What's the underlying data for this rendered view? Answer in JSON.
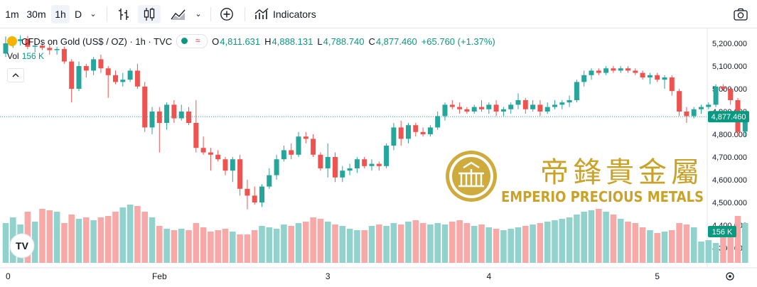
{
  "toolbar": {
    "intervals": [
      "1m",
      "30m",
      "1h",
      "D"
    ],
    "active_interval": "1h",
    "indicators_label": "Indicators"
  },
  "legend": {
    "symbol": "CFDs on Gold (US$ / OZ) · 1h · TVC",
    "o_label": "O",
    "o_value": "4,811.631",
    "h_label": "H",
    "h_value": "4,888.131",
    "l_label": "L",
    "l_value": "4,788.740",
    "c_label": "C",
    "c_value": "4,877.460",
    "change": "+65.760 (+1.37%)",
    "vol_label": "Vol",
    "vol_value": "156 K"
  },
  "watermark": {
    "cn": "帝鋒貴金屬",
    "en": "EMPERIO PRECIOUS METALS"
  },
  "colors": {
    "up": "#26a69a",
    "down": "#ef5350",
    "vol_up": "#92d2cc",
    "vol_down": "#f7a9a7",
    "accent": "#089981",
    "gold": "#c9a227"
  },
  "chart_data": {
    "type": "candlestick",
    "title": "CFDs on Gold (US$ / OZ) · 1h · TVC",
    "ylim": [
      4250,
      5250
    ],
    "y_ticks": [
      5200,
      5100,
      5000,
      4900,
      4800,
      4700,
      4600,
      4500,
      4400,
      4300
    ],
    "y_tick_labels": [
      "5,200.000",
      "5,100.000",
      "5,000.000",
      "4,900.000",
      "4,800.000",
      "4,700.000",
      "4,600.000",
      "4,500.000",
      "4,400.000",
      "4,300.000"
    ],
    "x_labels": [
      {
        "label": "0",
        "index": 0
      },
      {
        "label": "Feb",
        "index": 21
      },
      {
        "label": "3",
        "index": 44
      },
      {
        "label": "4",
        "index": 66
      },
      {
        "label": "5",
        "index": 89
      }
    ],
    "last_price": 4877.46,
    "last_price_label": "4,877.460",
    "last_volume_label": "156 K",
    "candles": [
      [
        5155,
        5230,
        5140,
        5200
      ],
      [
        5200,
        5230,
        5180,
        5210
      ],
      [
        5210,
        5235,
        5190,
        5218
      ],
      [
        5218,
        5232,
        5175,
        5185
      ],
      [
        5185,
        5205,
        5160,
        5190
      ],
      [
        5190,
        5205,
        5170,
        5180
      ],
      [
        5180,
        5195,
        5150,
        5170
      ],
      [
        5170,
        5185,
        5150,
        5175
      ],
      [
        5175,
        5185,
        5110,
        5120
      ],
      [
        5120,
        5130,
        4940,
        5000
      ],
      [
        5000,
        5120,
        4990,
        5100
      ],
      [
        5100,
        5110,
        5050,
        5080
      ],
      [
        5080,
        5140,
        5060,
        5130
      ],
      [
        5130,
        5150,
        5070,
        5090
      ],
      [
        5090,
        5100,
        4960,
        5060
      ],
      [
        5060,
        5080,
        5020,
        5030
      ],
      [
        5030,
        5070,
        5010,
        5040
      ],
      [
        5040,
        5090,
        5030,
        5080
      ],
      [
        5080,
        5110,
        5000,
        5010
      ],
      [
        5010,
        5030,
        4810,
        4830
      ],
      [
        4830,
        4920,
        4800,
        4900
      ],
      [
        4900,
        4920,
        4720,
        4850
      ],
      [
        4850,
        4940,
        4820,
        4930
      ],
      [
        4930,
        4950,
        4850,
        4870
      ],
      [
        4870,
        4930,
        4860,
        4900
      ],
      [
        4900,
        4920,
        4840,
        4850
      ],
      [
        4850,
        4950,
        4720,
        4740
      ],
      [
        4740,
        4790,
        4710,
        4720
      ],
      [
        4720,
        4740,
        4640,
        4710
      ],
      [
        4710,
        4730,
        4680,
        4690
      ],
      [
        4690,
        4700,
        4620,
        4640
      ],
      [
        4640,
        4700,
        4590,
        4690
      ],
      [
        4690,
        4710,
        4530,
        4560
      ],
      [
        4560,
        4600,
        4470,
        4530
      ],
      [
        4530,
        4570,
        4490,
        4500
      ],
      [
        4500,
        4580,
        4480,
        4570
      ],
      [
        4570,
        4650,
        4560,
        4620
      ],
      [
        4620,
        4710,
        4600,
        4690
      ],
      [
        4690,
        4750,
        4680,
        4730
      ],
      [
        4730,
        4760,
        4690,
        4710
      ],
      [
        4710,
        4810,
        4700,
        4790
      ],
      [
        4790,
        4810,
        4760,
        4780
      ],
      [
        4780,
        4800,
        4700,
        4710
      ],
      [
        4710,
        4720,
        4640,
        4650
      ],
      [
        4650,
        4760,
        4610,
        4700
      ],
      [
        4700,
        4720,
        4590,
        4610
      ],
      [
        4610,
        4660,
        4590,
        4640
      ],
      [
        4640,
        4670,
        4620,
        4650
      ],
      [
        4650,
        4700,
        4630,
        4690
      ],
      [
        4690,
        4700,
        4650,
        4660
      ],
      [
        4660,
        4690,
        4640,
        4670
      ],
      [
        4670,
        4680,
        4640,
        4660
      ],
      [
        4660,
        4760,
        4650,
        4750
      ],
      [
        4750,
        4850,
        4730,
        4830
      ],
      [
        4830,
        4860,
        4750,
        4780
      ],
      [
        4780,
        4850,
        4760,
        4840
      ],
      [
        4840,
        4850,
        4790,
        4810
      ],
      [
        4810,
        4830,
        4790,
        4800
      ],
      [
        4800,
        4840,
        4790,
        4830
      ],
      [
        4830,
        4900,
        4820,
        4880
      ],
      [
        4880,
        4940,
        4860,
        4930
      ],
      [
        4930,
        4950,
        4910,
        4920
      ],
      [
        4920,
        4940,
        4890,
        4910
      ],
      [
        4910,
        4920,
        4890,
        4900
      ],
      [
        4900,
        4930,
        4890,
        4920
      ],
      [
        4920,
        4950,
        4900,
        4910
      ],
      [
        4910,
        4940,
        4890,
        4930
      ],
      [
        4930,
        4950,
        4880,
        4900
      ],
      [
        4900,
        4920,
        4880,
        4910
      ],
      [
        4910,
        4940,
        4890,
        4930
      ],
      [
        4930,
        4980,
        4910,
        4950
      ],
      [
        4950,
        4960,
        4890,
        4910
      ],
      [
        4910,
        4950,
        4900,
        4930
      ],
      [
        4930,
        4950,
        4880,
        4900
      ],
      [
        4900,
        4940,
        4890,
        4920
      ],
      [
        4920,
        4950,
        4910,
        4930
      ],
      [
        4930,
        4950,
        4910,
        4940
      ],
      [
        4940,
        4970,
        4920,
        4950
      ],
      [
        4950,
        5040,
        4940,
        5030
      ],
      [
        5030,
        5080,
        5010,
        5060
      ],
      [
        5060,
        5090,
        5040,
        5080
      ],
      [
        5080,
        5090,
        5060,
        5070
      ],
      [
        5070,
        5100,
        5060,
        5090
      ],
      [
        5090,
        5100,
        5070,
        5080
      ],
      [
        5080,
        5100,
        5070,
        5090
      ],
      [
        5090,
        5100,
        5070,
        5080
      ],
      [
        5080,
        5090,
        5060,
        5070
      ],
      [
        5070,
        5080,
        5040,
        5050
      ],
      [
        5050,
        5070,
        5020,
        5060
      ],
      [
        5060,
        5070,
        5030,
        5040
      ],
      [
        5040,
        5060,
        5000,
        5050
      ],
      [
        5050,
        5060,
        4970,
        4990
      ],
      [
        4990,
        5000,
        4880,
        4900
      ],
      [
        4900,
        4920,
        4850,
        4880
      ],
      [
        4880,
        4920,
        4870,
        4910
      ],
      [
        4910,
        4930,
        4890,
        4920
      ],
      [
        4920,
        4940,
        4910,
        4930
      ],
      [
        4930,
        5020,
        4920,
        5010
      ],
      [
        5010,
        5020,
        4990,
        5000
      ],
      [
        5000,
        5010,
        4930,
        4950
      ],
      [
        4950,
        4960,
        4790,
        4810
      ],
      [
        4811.631,
        4888.131,
        4788.74,
        4877.46
      ]
    ],
    "volumes": [
      56,
      64,
      54,
      72,
      58,
      76,
      74,
      72,
      56,
      68,
      62,
      64,
      60,
      64,
      66,
      72,
      78,
      82,
      80,
      72,
      64,
      52,
      48,
      46,
      48,
      46,
      56,
      50,
      44,
      46,
      48,
      44,
      40,
      40,
      46,
      52,
      50,
      48,
      54,
      52,
      56,
      58,
      64,
      62,
      58,
      54,
      52,
      48,
      46,
      46,
      52,
      54,
      52,
      56,
      54,
      58,
      60,
      56,
      54,
      56,
      54,
      58,
      60,
      56,
      52,
      54,
      50,
      48,
      46,
      48,
      50,
      52,
      54,
      56,
      58,
      60,
      62,
      64,
      68,
      72,
      74,
      76,
      72,
      68,
      62,
      58,
      56,
      50,
      46,
      42,
      44,
      46,
      56,
      54,
      50,
      30,
      32,
      28,
      36,
      52,
      66,
      56
    ]
  }
}
